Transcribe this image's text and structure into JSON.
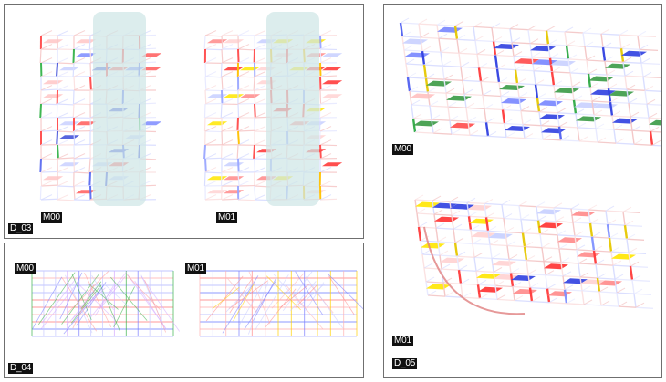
{
  "panels": {
    "d03": {
      "label": "D_03",
      "views": [
        {
          "tag": "M00",
          "palette": [
            "#3b4bd8",
            "#5b6cf0",
            "#ff4a4a",
            "#ffc6c6",
            "#c9d0ff",
            "#35b34a"
          ]
        },
        {
          "tag": "M01",
          "palette": [
            "#ffe600",
            "#ff3030",
            "#ff8a8a",
            "#ffd2d2",
            "#c7cfff",
            "#5a6af0"
          ]
        }
      ]
    },
    "d04": {
      "label": "D_04",
      "views": [
        {
          "tag": "M00"
        },
        {
          "tag": "M01"
        }
      ]
    },
    "d05": {
      "label": "D_05",
      "views": [
        {
          "tag": "M00"
        },
        {
          "tag": "M01"
        }
      ]
    }
  },
  "colors": {
    "border": "#6f6f6f",
    "tag_background": "#111111",
    "tag_text": "#ffffff",
    "highlight": "#cfe6e6",
    "stress_high": "#ff3030",
    "stress_low": "#3b4bd8",
    "stress_peak": "#ffe600",
    "accent_green": "#35b34a"
  }
}
